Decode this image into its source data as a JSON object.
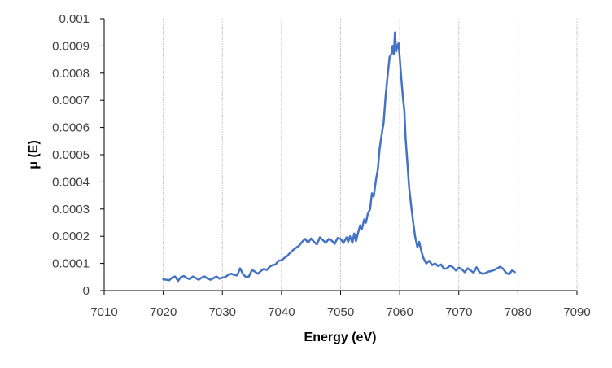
{
  "chart_data": {
    "type": "line",
    "xlabel": "Energy (eV)",
    "ylabel": "μ (E)",
    "xlim": [
      7010,
      7090
    ],
    "ylim": [
      0,
      0.001
    ],
    "x_ticks": [
      7010,
      7020,
      7030,
      7040,
      7050,
      7060,
      7070,
      7080,
      7090
    ],
    "y_ticks": [
      "0",
      "0.0001",
      "0.0002",
      "0.0003",
      "0.0004",
      "0.0005",
      "0.0006",
      "0.0007",
      "0.0008",
      "0.0009",
      "0.001"
    ],
    "vertical_gridlines": true,
    "horizontal_gridlines": false,
    "legend": "none",
    "line_color": "#4472C4",
    "series": [
      {
        "x": [
          7020.0,
          7020.5,
          7021.0,
          7021.5,
          7022.0,
          7022.5,
          7023.0,
          7023.5,
          7024.0,
          7024.5,
          7025.0,
          7025.5,
          7026.0,
          7026.5,
          7027.0,
          7027.5,
          7028.0,
          7028.5,
          7029.0,
          7029.5,
          7030.0,
          7030.5,
          7031.0,
          7031.5,
          7032.0,
          7032.5,
          7033.0,
          7033.5,
          7034.0,
          7034.5,
          7035.0,
          7035.5,
          7036.0,
          7036.5,
          7037.0,
          7037.5,
          7038.0,
          7038.5,
          7039.0,
          7039.5,
          7040.0,
          7040.5,
          7041.0,
          7041.5,
          7042.0,
          7042.5,
          7043.0,
          7043.5,
          7044.0,
          7044.5,
          7045.0,
          7045.5,
          7046.0,
          7046.5,
          7047.0,
          7047.5,
          7048.0,
          7048.5,
          7049.0,
          7049.5,
          7050.0,
          7050.5,
          7051.0,
          7051.3,
          7051.6,
          7052.0,
          7052.3,
          7052.6,
          7053.0,
          7053.3,
          7053.6,
          7054.0,
          7054.3,
          7054.6,
          7055.0,
          7055.3,
          7055.6,
          7056.0,
          7056.3,
          7056.6,
          7057.0,
          7057.3,
          7057.6,
          7058.0,
          7058.3,
          7058.6,
          7058.8,
          7059.0,
          7059.2,
          7059.4,
          7059.6,
          7059.8,
          7060.0,
          7060.2,
          7060.5,
          7060.8,
          7061.0,
          7061.3,
          7061.6,
          7062.0,
          7062.3,
          7062.6,
          7063.0,
          7063.3,
          7063.6,
          7064.0,
          7064.5,
          7065.0,
          7065.5,
          7066.0,
          7066.5,
          7067.0,
          7067.5,
          7068.0,
          7068.5,
          7069.0,
          7069.5,
          7070.0,
          7070.5,
          7071.0,
          7071.5,
          7072.0,
          7072.5,
          7073.0,
          7073.5,
          7074.0,
          7074.5,
          7075.0,
          7075.5,
          7076.0,
          7076.5,
          7077.0,
          7077.5,
          7078.0,
          7078.5,
          7079.0,
          7079.5
        ],
        "y": [
          4.2e-05,
          4e-05,
          3.8e-05,
          4.8e-05,
          5.2e-05,
          3.6e-05,
          5e-05,
          5.4e-05,
          4.6e-05,
          4.2e-05,
          5.2e-05,
          4.6e-05,
          4e-05,
          4.8e-05,
          5.2e-05,
          4.4e-05,
          4e-05,
          4.6e-05,
          5.2e-05,
          4.4e-05,
          4.8e-05,
          5e-05,
          5.8e-05,
          6.2e-05,
          5.8e-05,
          5.6e-05,
          8.2e-05,
          6e-05,
          5e-05,
          5.2e-05,
          7.6e-05,
          7e-05,
          6.2e-05,
          7.2e-05,
          8e-05,
          7.6e-05,
          8.8e-05,
          9.4e-05,
          9.6e-05,
          0.00011,
          0.000112,
          0.00012,
          0.000128,
          0.00014,
          0.00015,
          0.000158,
          0.000166,
          0.00018,
          0.00019,
          0.000176,
          0.000192,
          0.00018,
          0.00017,
          0.000196,
          0.000186,
          0.000176,
          0.00019,
          0.000184,
          0.000172,
          0.000194,
          0.00019,
          0.000176,
          0.000196,
          0.00018,
          0.0002,
          0.000176,
          0.00021,
          0.000182,
          0.000216,
          0.00024,
          0.000226,
          0.000262,
          0.00025,
          0.000282,
          0.0003,
          0.000358,
          0.000346,
          0.00041,
          0.000446,
          0.00052,
          0.00058,
          0.00062,
          0.00071,
          0.0008,
          0.00086,
          0.00087,
          0.0009,
          0.00087,
          0.00095,
          0.00088,
          0.0009,
          0.00091,
          0.00086,
          0.0008,
          0.00072,
          0.00066,
          0.00056,
          0.00047,
          0.00038,
          0.0003,
          0.00025,
          0.0002,
          0.00016,
          0.00018,
          0.00015,
          0.00012,
          0.0001,
          0.00011,
          9.4e-05,
          0.0001,
          9e-05,
          9.6e-05,
          8e-05,
          8.2e-05,
          9.2e-05,
          8.6e-05,
          7.4e-05,
          8.4e-05,
          7.8e-05,
          6.8e-05,
          8.2e-05,
          7.4e-05,
          6.6e-05,
          8.6e-05,
          6.8e-05,
          6.2e-05,
          6.4e-05,
          7e-05,
          7.2e-05,
          7.6e-05,
          8.2e-05,
          8.8e-05,
          8e-05,
          6.6e-05,
          6e-05,
          7.4e-05,
          6.8e-05
        ]
      }
    ]
  }
}
